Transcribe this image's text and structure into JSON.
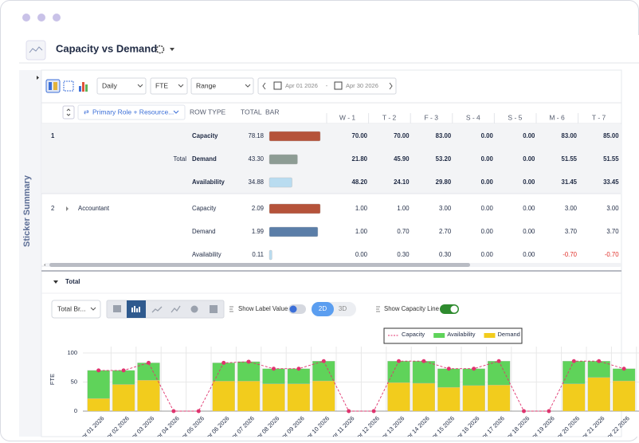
{
  "header": {
    "title": "Capacity vs Demand"
  },
  "sidebar_label": "Sticker Summary",
  "toolbar": {
    "period": "Daily",
    "unit": "FTE",
    "range": "Range",
    "start_date": "Apr 01 2026",
    "separator": "-",
    "end_date": "Apr 30 2026"
  },
  "table": {
    "columns": {
      "group": "Primary Role + Resource...",
      "row_type": "ROW TYPE",
      "total": "TOTAL",
      "bar": "BAR",
      "days": [
        "W - 1",
        "T - 2",
        "F - 3",
        "S - 4",
        "S - 5",
        "M - 6",
        "T - 7"
      ]
    },
    "groups": [
      {
        "id": "1",
        "label": "Total",
        "summary": true,
        "expandable": false,
        "rows": [
          {
            "row_type": "Capacity",
            "total": "78.18",
            "bar_color": "#b5533a",
            "values": [
              "70.00",
              "70.00",
              "83.00",
              "0.00",
              "0.00",
              "83.00",
              "85.00"
            ]
          },
          {
            "row_type": "Demand",
            "total": "43.30",
            "bar_color": "#8d9c94",
            "values": [
              "21.80",
              "45.90",
              "53.20",
              "0.00",
              "0.00",
              "51.55",
              "51.55"
            ]
          },
          {
            "row_type": "Availability",
            "total": "34.88",
            "bar_color": "#b9dcf0",
            "values": [
              "48.20",
              "24.10",
              "29.80",
              "0.00",
              "0.00",
              "31.45",
              "33.45"
            ]
          }
        ]
      },
      {
        "id": "2",
        "label": "Accountant",
        "summary": false,
        "expandable": true,
        "rows": [
          {
            "row_type": "Capacity",
            "total": "2.09",
            "bar_color": "#b5533a",
            "values": [
              "1.00",
              "1.00",
              "3.00",
              "0.00",
              "0.00",
              "3.00",
              "3.00"
            ]
          },
          {
            "row_type": "Demand",
            "total": "1.99",
            "bar_color": "#5b7ea8",
            "values": [
              "1.00",
              "0.70",
              "2.70",
              "0.00",
              "0.00",
              "3.70",
              "3.70"
            ]
          },
          {
            "row_type": "Availability",
            "total": "0.11",
            "bar_color": "#b9dcf0",
            "values": [
              "0.00",
              "0.30",
              "0.30",
              "0.00",
              "0.00",
              "-0.70",
              "-0.70"
            ]
          }
        ]
      }
    ]
  },
  "section_title": "Total",
  "chart_controls": {
    "breakdown": "Total Br...",
    "show_label_value": "Show Label Value",
    "show_label_value_on": false,
    "mode_2d": "2D",
    "mode_3d": "3D",
    "show_capacity_line": "Show Capacity Line",
    "show_capacity_line_on": true
  },
  "chart_data": {
    "type": "bar",
    "stacked": true,
    "y_label": "FTE",
    "categories": [
      "Apr 01 2026",
      "Apr 02 2026",
      "Apr 03 2026",
      "Apr 04 2026",
      "Apr 05 2026",
      "Apr 06 2026",
      "Apr 07 2026",
      "Apr 08 2026",
      "Apr 09 2026",
      "Apr 10 2026",
      "Apr 11 2026",
      "Apr 12 2026",
      "Apr 13 2026",
      "Apr 14 2026",
      "Apr 15 2026",
      "Apr 16 2026",
      "Apr 17 2026",
      "Apr 18 2026",
      "Apr 19 2026",
      "Apr 20 2026",
      "Apr 21 2026",
      "Apr 22 2026"
    ],
    "series": [
      {
        "name": "Capacity",
        "kind": "line",
        "color": "#e0336e",
        "values": [
          70,
          70,
          83,
          0,
          0,
          83,
          85,
          73,
          73,
          86,
          0,
          0,
          86,
          86,
          73,
          73,
          86,
          0,
          0,
          86,
          86,
          73
        ]
      },
      {
        "name": "Availability",
        "kind": "bar",
        "color": "#5fd35a",
        "values": [
          48.2,
          24.1,
          29.8,
          0,
          0,
          31.45,
          33.45,
          26,
          26,
          34,
          0,
          0,
          37,
          38,
          32,
          29,
          41,
          0,
          0,
          39,
          28,
          21
        ]
      },
      {
        "name": "Demand",
        "kind": "bar",
        "color": "#f2cc1d",
        "values": [
          21.8,
          45.9,
          53.2,
          0,
          0,
          51.55,
          51.55,
          47,
          47,
          52,
          0,
          0,
          49,
          48,
          41,
          44,
          45,
          0,
          0,
          47,
          58,
          52
        ]
      }
    ],
    "ylim": [
      0,
      110
    ],
    "yticks": [
      0,
      50,
      100
    ],
    "grid": true
  }
}
